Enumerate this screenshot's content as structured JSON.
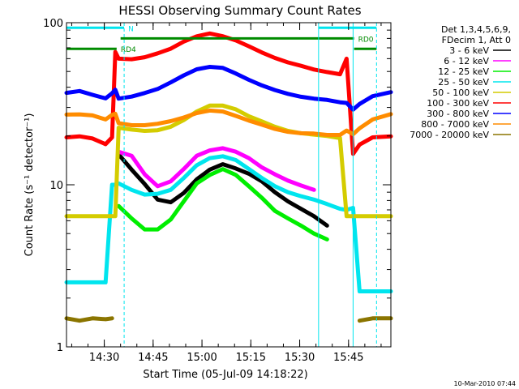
{
  "chart_data": {
    "type": "line",
    "title": "HESSI Observing Summary Count Rates",
    "xlabel": "Start Time (05-Jul-09 14:18:22)",
    "ylabel": "Count Rate (s⁻¹ detector⁻¹)",
    "x_unit": "minutes after 14:18:22",
    "xlim": [
      0,
      99.6
    ],
    "ylim": [
      1,
      100
    ],
    "y_scale": "log",
    "x_ticks": [
      {
        "label": "14:30",
        "x": 11.6
      },
      {
        "label": "14:45",
        "x": 26.6
      },
      {
        "label": "15:00",
        "x": 41.6
      },
      {
        "label": "15:15",
        "x": 56.6
      },
      {
        "label": "15:30",
        "x": 71.6
      },
      {
        "label": "15:45",
        "x": 86.6
      }
    ],
    "y_ticks": [
      {
        "label": "1",
        "y": 1
      },
      {
        "label": "10",
        "y": 10
      },
      {
        "label": "100",
        "y": 100
      }
    ],
    "legend": {
      "placement": "right",
      "header": [
        "Det 1,3,4,5,6,9,",
        "FDecim 1, Att 0"
      ]
    },
    "flags": [
      {
        "label": "N",
        "color": "#00e5ee",
        "y": 93,
        "segments": [
          [
            0,
            17.7
          ],
          [
            77.4,
            95.2
          ]
        ]
      },
      {
        "label": "RD0",
        "color": "#008b00",
        "y": 80,
        "segments": [
          [
            16.6,
            88.3
          ]
        ]
      },
      {
        "label": "RD4",
        "color": "#008b00",
        "y": 69,
        "segments": [
          [
            0,
            15.4
          ],
          [
            88.3,
            95.2
          ]
        ]
      }
    ],
    "markers": [
      {
        "color": "#00e5ee",
        "style": "solid",
        "x": 77.4
      },
      {
        "color": "#00e5ee",
        "style": "solid",
        "x": 88.0
      },
      {
        "color": "#00e5ee",
        "style": "dashed",
        "x": 17.7
      },
      {
        "color": "#00e5ee",
        "style": "dashed",
        "x": 95.2
      }
    ],
    "x": [
      0,
      4,
      8,
      12,
      14,
      15,
      16,
      20,
      24,
      28,
      32,
      36,
      40,
      44,
      48,
      52,
      56,
      60,
      64,
      68,
      72,
      76,
      80,
      84,
      86,
      88,
      90,
      94,
      99.6
    ],
    "series": [
      {
        "name": "3 - 6 keV",
        "color": "#000000",
        "values": [
          null,
          null,
          null,
          null,
          null,
          null,
          15.4,
          12.4,
          10.1,
          8.1,
          7.8,
          8.9,
          10.8,
          12.4,
          13.4,
          12.6,
          11.7,
          10.5,
          9.0,
          7.9,
          7.1,
          6.4,
          5.6,
          null,
          null,
          null,
          null,
          null,
          null
        ]
      },
      {
        "name": "6 - 12 keV",
        "color": "#ff00ff",
        "values": [
          null,
          null,
          null,
          null,
          null,
          null,
          16.0,
          15.1,
          11.6,
          9.8,
          10.5,
          12.5,
          15.1,
          16.3,
          16.8,
          16.0,
          14.6,
          12.8,
          11.6,
          10.6,
          9.9,
          9.3,
          null,
          null,
          null,
          null,
          null,
          null,
          null
        ]
      },
      {
        "name": "12 - 25 keV",
        "color": "#00ee00",
        "values": [
          null,
          null,
          null,
          null,
          null,
          null,
          7.4,
          6.2,
          5.3,
          5.3,
          6.1,
          7.9,
          10.2,
          11.5,
          12.5,
          11.5,
          9.8,
          8.3,
          6.9,
          6.2,
          5.6,
          5.0,
          4.6,
          null,
          null,
          null,
          null,
          null,
          null
        ]
      },
      {
        "name": "25 - 50 keV",
        "color": "#00e5ee",
        "values": [
          2.5,
          2.5,
          2.5,
          2.5,
          10.0,
          10.0,
          10.2,
          9.3,
          8.7,
          8.8,
          9.3,
          11.0,
          13.2,
          14.6,
          15.0,
          14.2,
          12.5,
          11.0,
          9.8,
          9.0,
          8.5,
          8.1,
          7.6,
          7.1,
          7.0,
          7.2,
          2.2,
          2.2,
          2.2
        ]
      },
      {
        "name": "50 - 100 keV",
        "color": "#d4cc00",
        "values": [
          6.4,
          6.4,
          6.4,
          6.4,
          6.4,
          6.4,
          22.5,
          21.9,
          21.5,
          21.7,
          22.8,
          25.1,
          28.3,
          30.8,
          30.8,
          29.2,
          26.5,
          24.6,
          22.8,
          21.5,
          20.8,
          20.4,
          20.0,
          19.4,
          6.4,
          6.4,
          6.4,
          6.4,
          6.4
        ]
      },
      {
        "name": "100 - 300 keV",
        "color": "#ff0000",
        "values": [
          19.6,
          19.9,
          19.3,
          17.8,
          19.6,
          66.0,
          60.0,
          59.5,
          61.2,
          64.7,
          69.1,
          76.5,
          82.4,
          85.8,
          82.5,
          77.7,
          71.5,
          65.5,
          60.6,
          56.9,
          54.2,
          51.4,
          49.6,
          48.1,
          60.0,
          15.5,
          17.7,
          19.6,
          19.9
        ]
      },
      {
        "name": "300 - 800 keV",
        "color": "#0000ff",
        "values": [
          36.9,
          37.9,
          35.9,
          34.1,
          36.7,
          38.6,
          34.0,
          35.0,
          36.8,
          39.0,
          42.8,
          47.3,
          51.6,
          53.4,
          52.6,
          48.6,
          44.4,
          41.0,
          38.4,
          36.4,
          34.9,
          34.0,
          33.4,
          32.3,
          32.0,
          29.1,
          31.5,
          35.2,
          37.3
        ]
      },
      {
        "name": "800 - 7000 keV",
        "color": "#ff8c00",
        "values": [
          27.1,
          27.2,
          26.8,
          25.3,
          27.0,
          27.4,
          24.0,
          23.3,
          23.3,
          23.8,
          24.7,
          26.0,
          27.7,
          28.7,
          28.3,
          26.6,
          24.9,
          23.5,
          22.1,
          21.2,
          20.8,
          20.7,
          20.3,
          20.3,
          21.6,
          20.5,
          22.3,
          25.3,
          27.3
        ]
      },
      {
        "name": "7000 - 20000 keV",
        "color": "#8b7500",
        "values": [
          1.5,
          1.45,
          1.5,
          1.48,
          1.5,
          null,
          null,
          null,
          null,
          null,
          null,
          null,
          null,
          null,
          null,
          null,
          null,
          null,
          null,
          null,
          null,
          null,
          null,
          null,
          null,
          null,
          1.45,
          1.5,
          1.5
        ]
      }
    ]
  },
  "footer": {
    "timestamp": "10-Mar-2010 07:44"
  }
}
